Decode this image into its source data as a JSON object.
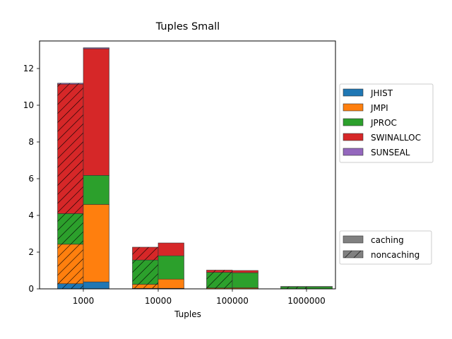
{
  "chart_data": {
    "type": "bar",
    "title": "Tuples Small",
    "xlabel": "Tuples",
    "ylabel": "",
    "categories": [
      "1000",
      "10000",
      "100000",
      "1000000"
    ],
    "ylim": [
      0,
      13.5
    ],
    "yticks": [
      0,
      2,
      4,
      6,
      8,
      10,
      12
    ],
    "grid": false,
    "stacked": true,
    "groups": [
      {
        "name": "noncaching",
        "hatch": "diagonal",
        "position": "left"
      },
      {
        "name": "caching",
        "hatch": "none",
        "position": "right"
      }
    ],
    "series": [
      {
        "name": "JHIST",
        "color": "#1f77b4",
        "noncaching": [
          0.28,
          0.03,
          0.01,
          0.0
        ],
        "caching": [
          0.38,
          0.03,
          0.01,
          0.0
        ]
      },
      {
        "name": "JMPI",
        "color": "#ff7f0e",
        "noncaching": [
          2.15,
          0.22,
          0.04,
          0.0
        ],
        "caching": [
          4.22,
          0.5,
          0.05,
          0.0
        ]
      },
      {
        "name": "JPROC",
        "color": "#2ca02c",
        "noncaching": [
          1.67,
          1.32,
          0.85,
          0.12
        ],
        "caching": [
          1.58,
          1.27,
          0.82,
          0.12
        ]
      },
      {
        "name": "SWINALLOC",
        "color": "#d62728",
        "noncaching": [
          7.05,
          0.7,
          0.12,
          0.01
        ],
        "caching": [
          6.9,
          0.7,
          0.12,
          0.01
        ]
      },
      {
        "name": "SUNSEAL",
        "color": "#9467bd",
        "noncaching": [
          0.05,
          0.0,
          0.0,
          0.0
        ],
        "caching": [
          0.05,
          0.0,
          0.0,
          0.0
        ]
      }
    ],
    "legend": {
      "placement": "right",
      "series_labels": [
        "JHIST",
        "JMPI",
        "JPROC",
        "SWINALLOC",
        "SUNSEAL"
      ],
      "hatch_labels": [
        "caching",
        "noncaching"
      ],
      "hatch_colors": [
        "#808080",
        "#808080"
      ]
    }
  }
}
